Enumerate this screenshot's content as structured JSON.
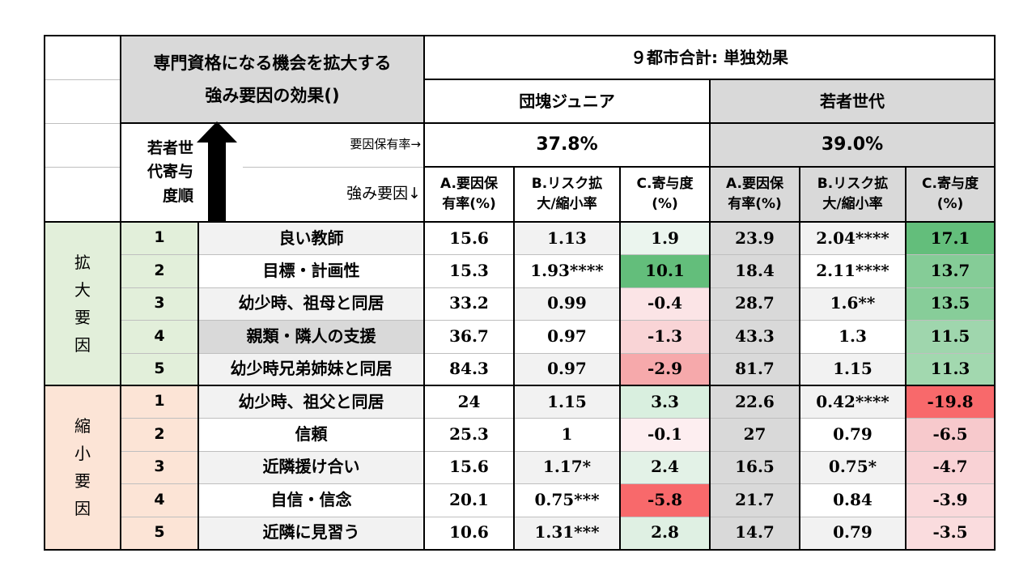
{
  "header": {
    "title_line1": "専門資格になる機会を拡大する",
    "title_line2": "強み要因の効果()",
    "total_label": "９都市合計: 単独効果",
    "group1": "団塊ジュニア",
    "group2": "若者世代",
    "rank_label": "若者世代寄与度順",
    "prevalence_label": "要因保有率→",
    "factor_label": "強み要因↓",
    "group1_rate": "37.8%",
    "group2_rate": "39.0%",
    "colA": "A.要因保有率(%)",
    "colB": "B.リスク拡大/縮小率",
    "colC": "C.寄与度(%)"
  },
  "groups": [
    {
      "label": "拡大要因",
      "color": "#e2efda",
      "rows": [
        {
          "rank": "1",
          "factor": "良い教師",
          "a1": "15.6",
          "b1": "1.13",
          "c1": "1.9",
          "a2": "23.9",
          "b2": "2.04****",
          "c2": "17.1",
          "c1color": "#ebf5ee",
          "c2color": "#63be7b"
        },
        {
          "rank": "2",
          "factor": "目標・計画性",
          "a1": "15.3",
          "b1": "1.93****",
          "c1": "10.1",
          "a2": "18.4",
          "b2": "2.11****",
          "c2": "13.7",
          "c1color": "#63be7b",
          "c2color": "#85cc97"
        },
        {
          "rank": "3",
          "factor": "幼少時、祖母と同居",
          "a1": "33.2",
          "b1": "0.99",
          "c1": "-0.4",
          "a2": "28.7",
          "b2": "1.6**",
          "c2": "13.5",
          "c1color": "#fbe4e6",
          "c2color": "#87cd99"
        },
        {
          "rank": "4",
          "factor": "親類・隣人の支援",
          "a1": "36.7",
          "b1": "0.97",
          "c1": "-1.3",
          "a2": "43.3",
          "b2": "1.3",
          "c2": "11.5",
          "c1color": "#f9d4d6",
          "c2color": "#9fd6ad"
        },
        {
          "rank": "5",
          "factor": "幼少時兄弟姉妹と同居",
          "a1": "84.3",
          "b1": "0.97",
          "c1": "-2.9",
          "a2": "81.7",
          "b2": "1.15",
          "c2": "11.3",
          "c1color": "#f6a9ab",
          "c2color": "#a2d8af"
        }
      ]
    },
    {
      "label": "縮小要因",
      "color": "#fce4d6",
      "rows": [
        {
          "rank": "1",
          "factor": "幼少時、祖父と同居",
          "a1": "24",
          "b1": "1.15",
          "c1": "3.3",
          "a2": "22.6",
          "b2": "0.42****",
          "c2": "-19.8",
          "c1color": "#d9efdf",
          "c2color": "#f8696b"
        },
        {
          "rank": "2",
          "factor": "信頼",
          "a1": "25.3",
          "b1": "1",
          "c1": "-0.1",
          "a2": "27",
          "b2": "0.79",
          "c2": "-6.5",
          "c1color": "#fdeef0",
          "c2color": "#f7c9cc"
        },
        {
          "rank": "3",
          "factor": "近隣援け合い",
          "a1": "15.6",
          "b1": "1.17*",
          "c1": "2.4",
          "a2": "16.5",
          "b2": "0.75*",
          "c2": "-4.7",
          "c1color": "#e3f2e7",
          "c2color": "#f9d2d5"
        },
        {
          "rank": "4",
          "factor": "自信・信念",
          "a1": "20.1",
          "b1": "0.75***",
          "c1": "-5.8",
          "a2": "21.7",
          "b2": "0.84",
          "c2": "-3.9",
          "c1color": "#f8696b",
          "c2color": "#fad9db"
        },
        {
          "rank": "5",
          "factor": "近隣に見習う",
          "a1": "10.6",
          "b1": "1.31***",
          "c1": "2.8",
          "a2": "14.7",
          "b2": "0.79",
          "c2": "-3.5",
          "c1color": "#dff0e3",
          "c2color": "#fadcde"
        }
      ]
    }
  ]
}
